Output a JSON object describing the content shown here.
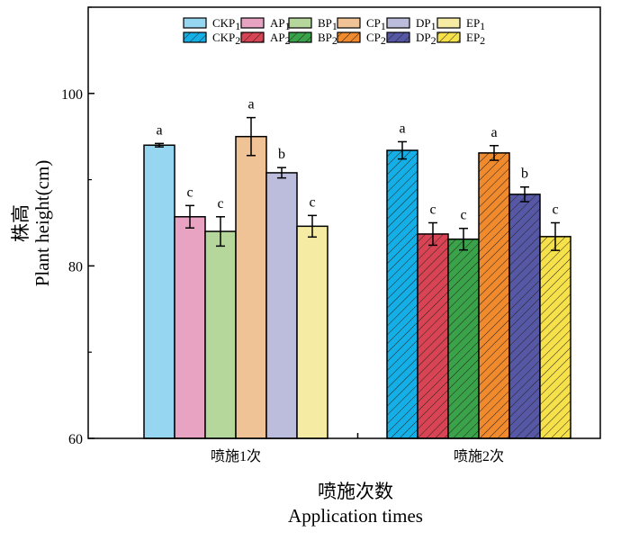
{
  "chart_data": {
    "type": "bar",
    "title": "",
    "ylabel_cn": "株高",
    "ylabel": "Plant height(cm)",
    "xlabel_cn": "喷施次数",
    "xlabel": "Application times",
    "ylim": [
      60,
      110
    ],
    "yticks": [
      "60",
      "80",
      "100"
    ],
    "ytick_values": [
      60,
      80,
      100
    ],
    "categories": [
      "喷施1次",
      "喷施2次"
    ],
    "legend_position": "top-center",
    "groups": [
      {
        "category": "喷施1次",
        "series": [
          {
            "name": "CKP",
            "sub": "1",
            "value": 94.0,
            "error": 0.2,
            "letter": "a",
            "color": "#97d6f0",
            "hatch": false
          },
          {
            "name": "AP",
            "sub": "1",
            "value": 85.7,
            "error": 1.3,
            "letter": "c",
            "color": "#e9a3c2",
            "hatch": false
          },
          {
            "name": "BP",
            "sub": "1",
            "value": 84.0,
            "error": 1.7,
            "letter": "c",
            "color": "#b5d79c",
            "hatch": false
          },
          {
            "name": "CP",
            "sub": "1",
            "value": 95.0,
            "error": 2.2,
            "letter": "a",
            "color": "#efc395",
            "hatch": false
          },
          {
            "name": "DP",
            "sub": "1",
            "value": 90.8,
            "error": 0.6,
            "letter": "b",
            "color": "#bcbcdc",
            "hatch": false
          },
          {
            "name": "EP",
            "sub": "1",
            "value": 84.6,
            "error": 1.25,
            "letter": "c",
            "color": "#f5eba3",
            "hatch": false
          }
        ]
      },
      {
        "category": "喷施2次",
        "series": [
          {
            "name": "CKP",
            "sub": "2",
            "value": 93.4,
            "error": 1.0,
            "letter": "a",
            "color": "#14afe6",
            "hatch": true
          },
          {
            "name": "AP",
            "sub": "2",
            "value": 83.7,
            "error": 1.3,
            "letter": "c",
            "color": "#d94454",
            "hatch": true
          },
          {
            "name": "BP",
            "sub": "2",
            "value": 83.1,
            "error": 1.25,
            "letter": "c",
            "color": "#3aa34a",
            "hatch": true
          },
          {
            "name": "CP",
            "sub": "2",
            "value": 93.1,
            "error": 0.85,
            "letter": "a",
            "color": "#f08a2c",
            "hatch": true
          },
          {
            "name": "DP",
            "sub": "2",
            "value": 88.3,
            "error": 0.85,
            "letter": "b",
            "color": "#5658a6",
            "hatch": true
          },
          {
            "name": "EP",
            "sub": "2",
            "value": 83.4,
            "error": 1.6,
            "letter": "c",
            "color": "#f6e14a",
            "hatch": true
          }
        ]
      }
    ]
  }
}
